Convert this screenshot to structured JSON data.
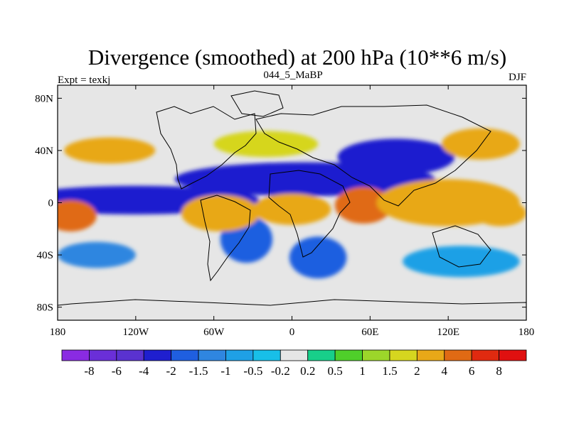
{
  "chart_data": {
    "type": "contour-map",
    "title": "Divergence (smoothed) at 200 hPa (10**6 m/s)",
    "left_label": "Expt = texkj",
    "center_label": "044_5_MaBP",
    "right_label": "DJF",
    "x_ticks": [
      "180",
      "120W",
      "60W",
      "0",
      "60E",
      "120E",
      "180"
    ],
    "x_tick_values": [
      -180,
      -120,
      -60,
      0,
      60,
      120,
      180
    ],
    "y_ticks": [
      "80N",
      "40N",
      "0",
      "40S",
      "80S"
    ],
    "y_tick_values": [
      80,
      40,
      0,
      -40,
      -80
    ],
    "xlim": [
      -180,
      180
    ],
    "ylim": [
      -90,
      90
    ],
    "levels": [
      "-8",
      "-6",
      "-4",
      "-2",
      "-1.5",
      "-1",
      "-0.5",
      "-0.2",
      "0.2",
      "0.5",
      "1",
      "1.5",
      "2",
      "4",
      "6",
      "8"
    ],
    "colors": [
      "#8a2be2",
      "#6a2fd8",
      "#5a32d0",
      "#1f1fcf",
      "#1f5fe0",
      "#2f86e0",
      "#1fa0e6",
      "#18bfe8",
      "#e6e6e6",
      "#18cf8a",
      "#4fcf2a",
      "#9cd62a",
      "#d6d61f",
      "#e8a818",
      "#e06a14",
      "#e02a10",
      "#e01010"
    ],
    "features": [
      {
        "lon": -120,
        "lat": 2,
        "rx": 95,
        "ry": 11,
        "level": -4
      },
      {
        "lon": 10,
        "lat": 18,
        "rx": 100,
        "ry": 13,
        "level": -4
      },
      {
        "lon": 80,
        "lat": 35,
        "rx": 45,
        "ry": 14,
        "level": -4
      },
      {
        "lon": -35,
        "lat": -28,
        "rx": 20,
        "ry": 18,
        "level": -2
      },
      {
        "lon": 20,
        "lat": -42,
        "rx": 22,
        "ry": 16,
        "level": -2
      },
      {
        "lon": -150,
        "lat": -40,
        "rx": 30,
        "ry": 10,
        "level": -1.5
      },
      {
        "lon": 130,
        "lat": -45,
        "rx": 45,
        "ry": 12,
        "level": -1
      },
      {
        "lon": -140,
        "lat": 40,
        "rx": 35,
        "ry": 10,
        "level": 2
      },
      {
        "lon": -20,
        "lat": 45,
        "rx": 40,
        "ry": 10,
        "level": 1.5
      },
      {
        "lon": 145,
        "lat": 45,
        "rx": 30,
        "ry": 12,
        "level": 2
      },
      {
        "lon": -55,
        "lat": -8,
        "rx": 30,
        "ry": 14,
        "level": 2
      },
      {
        "lon": 0,
        "lat": -5,
        "rx": 30,
        "ry": 12,
        "level": 2
      },
      {
        "lon": 55,
        "lat": -2,
        "rx": 22,
        "ry": 14,
        "level": 4
      },
      {
        "lon": 120,
        "lat": 0,
        "rx": 55,
        "ry": 18,
        "level": 2
      },
      {
        "lon": -170,
        "lat": -10,
        "rx": 20,
        "ry": 12,
        "level": 4
      },
      {
        "lon": 160,
        "lat": -8,
        "rx": 20,
        "ry": 10,
        "level": 2
      }
    ]
  }
}
